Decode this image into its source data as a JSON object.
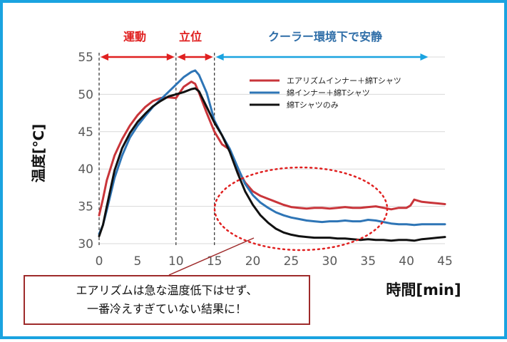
{
  "colors": {
    "frame": "#1aa3e0",
    "phase_red": "#e02020",
    "phase_blue": "#2f6ea8",
    "arrow_red": "#e02020",
    "arrow_blue": "#1aa3e0",
    "ellipse": "#e02020",
    "callout_border": "#9e2a2a"
  },
  "phases": [
    {
      "label": "運動",
      "color": "#e02020"
    },
    {
      "label": "立位",
      "color": "#e02020"
    },
    {
      "label": "クーラー環境下で安静",
      "color": "#2f6ea8"
    }
  ],
  "chart_data": {
    "type": "line",
    "xlabel": "時間[min]",
    "ylabel": "温度[℃]",
    "xlim": [
      0,
      45
    ],
    "ylim": [
      30,
      55
    ],
    "xticks": [
      0,
      5,
      10,
      15,
      20,
      25,
      30,
      35,
      40,
      45
    ],
    "yticks": [
      30,
      35,
      40,
      45,
      50,
      55
    ],
    "grid": true,
    "legend": "top-right",
    "phase_boundaries": [
      10,
      15
    ],
    "series": [
      {
        "name": "エアリズムインナー＋綿Tシャツ",
        "color": "#c9353a",
        "x": [
          0,
          0.5,
          1,
          2,
          3,
          4,
          5,
          6,
          7,
          8,
          9,
          10,
          11,
          12,
          12.5,
          13,
          14,
          15,
          16,
          17,
          18,
          19,
          20,
          21,
          22,
          23,
          24,
          25,
          26,
          27,
          28,
          29,
          30,
          31,
          32,
          33,
          34,
          35,
          36,
          37,
          38,
          39,
          40,
          40.5,
          41,
          42,
          43,
          44,
          45
        ],
        "y": [
          33.8,
          36,
          38.5,
          41.8,
          44,
          45.8,
          47.2,
          48.3,
          49.1,
          49.5,
          49.6,
          49.5,
          51,
          51.7,
          51.4,
          50.2,
          47.5,
          45,
          43.3,
          42.6,
          40,
          38.2,
          37,
          36.4,
          36,
          35.6,
          35.2,
          34.9,
          34.8,
          34.7,
          34.8,
          34.8,
          34.7,
          34.8,
          34.9,
          34.8,
          34.8,
          34.9,
          35,
          34.8,
          34.6,
          34.8,
          34.8,
          35.1,
          35.9,
          35.6,
          35.5,
          35.4,
          35.3
        ]
      },
      {
        "name": "綿インナー＋綿Tシャツ",
        "color": "#2e75b6",
        "x": [
          0,
          0.5,
          1,
          2,
          3,
          4,
          5,
          6,
          7,
          8,
          9,
          10,
          11,
          12,
          12.5,
          13,
          14,
          15,
          16,
          17,
          18,
          19,
          20,
          21,
          22,
          23,
          24,
          25,
          26,
          27,
          28,
          29,
          30,
          31,
          32,
          33,
          34,
          35,
          36,
          37,
          38,
          39,
          40,
          41,
          42,
          43,
          44,
          45
        ],
        "y": [
          31.3,
          32.5,
          34.5,
          38.8,
          41.8,
          44.2,
          45.8,
          47.1,
          48.3,
          49.3,
          50.3,
          51.3,
          52.3,
          53,
          53.2,
          52.6,
          50.2,
          46.5,
          44.5,
          42.7,
          40.3,
          38,
          36.5,
          35.5,
          34.8,
          34.2,
          33.8,
          33.5,
          33.3,
          33.1,
          33,
          32.9,
          33,
          33,
          33.1,
          33,
          33,
          33.2,
          33.1,
          32.9,
          32.7,
          32.6,
          32.6,
          32.5,
          32.6,
          32.6,
          32.6,
          32.6
        ]
      },
      {
        "name": "綿Tシャツのみ",
        "color": "#111111",
        "x": [
          0,
          0.5,
          1,
          2,
          3,
          4,
          5,
          6,
          7,
          8,
          9,
          10,
          11,
          12,
          12.5,
          13,
          14,
          15,
          16,
          17,
          18,
          19,
          20,
          21,
          22,
          23,
          24,
          25,
          26,
          27,
          28,
          29,
          30,
          31,
          32,
          33,
          34,
          35,
          36,
          37,
          38,
          39,
          40,
          41,
          42,
          43,
          44,
          45
        ],
        "y": [
          31,
          32.5,
          35,
          39.8,
          42.8,
          44.8,
          46.3,
          47.4,
          48.4,
          49.1,
          49.7,
          50,
          50.3,
          50.7,
          50.8,
          50.4,
          48.3,
          46.2,
          44.5,
          42.3,
          39.5,
          37,
          35.2,
          33.8,
          32.8,
          32,
          31.5,
          31.2,
          31,
          30.9,
          30.8,
          30.8,
          30.8,
          30.7,
          30.7,
          30.6,
          30.5,
          30.6,
          30.5,
          30.5,
          30.4,
          30.5,
          30.5,
          30.4,
          30.6,
          30.7,
          30.8,
          30.9
        ]
      }
    ]
  },
  "callout": {
    "line1": "エアリズムは急な温度低下はせず、",
    "line2": "一番冷えすぎていない結果に！"
  }
}
